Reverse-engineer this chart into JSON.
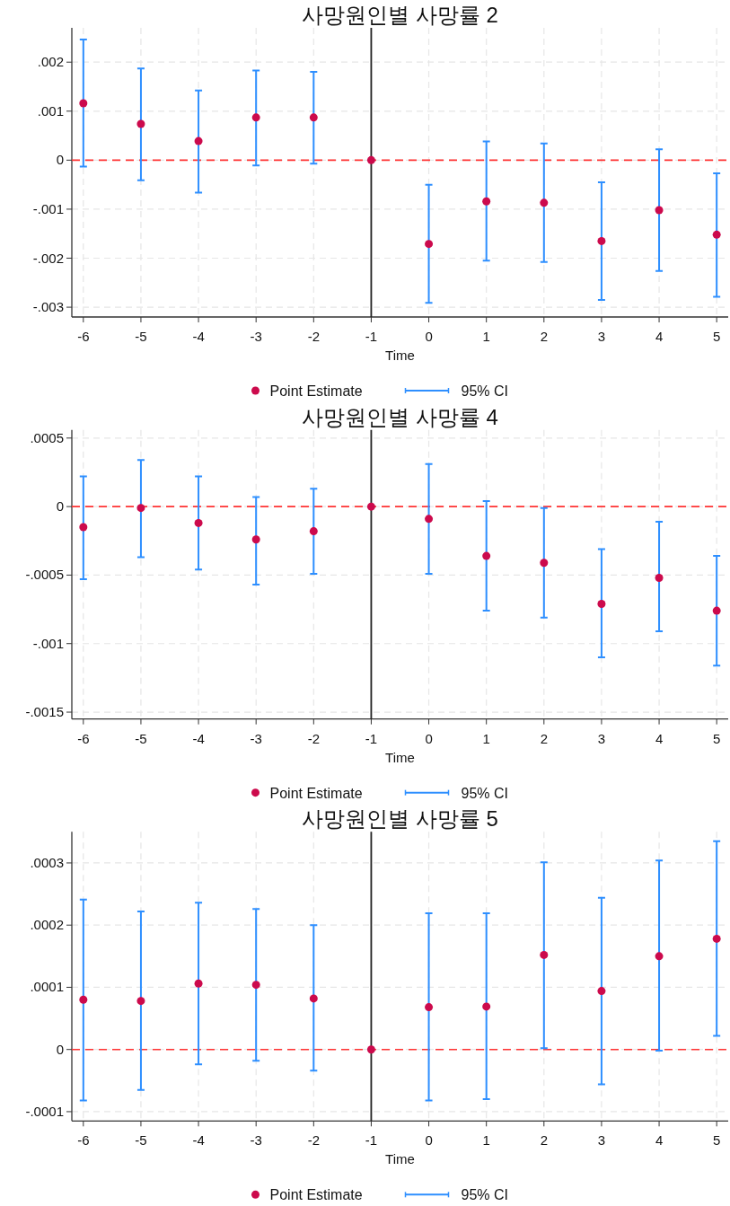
{
  "chart_data": [
    {
      "type": "scatter",
      "title": "사망원인별 사망률 2",
      "xlabel": "Time",
      "x": [
        -6,
        -5,
        -4,
        -3,
        -2,
        -1,
        0,
        1,
        2,
        3,
        4,
        5
      ],
      "xlim": [
        -6.2,
        5.2
      ],
      "xticks": [
        -6,
        -5,
        -4,
        -3,
        -2,
        -1,
        0,
        1,
        2,
        3,
        4,
        5
      ],
      "ylim": [
        -0.0032,
        0.0027
      ],
      "yticks": [
        {
          "value": -0.003,
          "label": "-.003"
        },
        {
          "value": -0.002,
          "label": "-.002"
        },
        {
          "value": -0.001,
          "label": "-.001"
        },
        {
          "value": 0,
          "label": "0"
        },
        {
          "value": 0.001,
          "label": ".001"
        },
        {
          "value": 0.002,
          "label": ".002"
        }
      ],
      "grid": true,
      "legend": "bottom",
      "marker": "circle",
      "ref_lines": [
        {
          "axis": "y",
          "value": 0,
          "color": "#ff3333",
          "line_style": "dashed"
        },
        {
          "axis": "x",
          "value": -1,
          "color": "#222222",
          "line_style": "solid"
        }
      ],
      "series": [
        {
          "name": "Point Estimate",
          "color": "#cc0a4c",
          "values": [
            0.00116,
            0.00074,
            0.00039,
            0.00087,
            0.00087,
            0,
            -0.00171,
            -0.00084,
            -0.00087,
            -0.00165,
            -0.00102,
            -0.00152
          ],
          "errors": [
            [
              -0.00013,
              0.00246
            ],
            [
              -0.00041,
              0.00187
            ],
            [
              -0.00066,
              0.00142
            ],
            [
              -0.00011,
              0.00183
            ],
            [
              -7e-05,
              0.0018
            ],
            null,
            [
              -0.00291,
              -0.0005
            ],
            [
              -0.00205,
              0.00038
            ],
            [
              -0.00208,
              0.00034
            ],
            [
              -0.00285,
              -0.00045
            ],
            [
              -0.00226,
              0.00022
            ],
            [
              -0.00279,
              -0.00027
            ]
          ]
        }
      ],
      "annotations": [
        "95% CI"
      ]
    },
    {
      "type": "scatter",
      "title": "사망원인별 사망률 4",
      "xlabel": "Time",
      "x": [
        -6,
        -5,
        -4,
        -3,
        -2,
        -1,
        0,
        1,
        2,
        3,
        4,
        5
      ],
      "xlim": [
        -6.2,
        5.2
      ],
      "xticks": [
        -6,
        -5,
        -4,
        -3,
        -2,
        -1,
        0,
        1,
        2,
        3,
        4,
        5
      ],
      "ylim": [
        -0.00155,
        0.00056
      ],
      "yticks": [
        {
          "value": -0.0015,
          "label": "-.0015"
        },
        {
          "value": -0.001,
          "label": "-.001"
        },
        {
          "value": -0.0005,
          "label": "-.0005"
        },
        {
          "value": 0,
          "label": "0"
        },
        {
          "value": 0.0005,
          "label": ".0005"
        }
      ],
      "grid": true,
      "legend": "bottom",
      "marker": "circle",
      "ref_lines": [
        {
          "axis": "y",
          "value": 0,
          "color": "#ff3333",
          "line_style": "dashed"
        },
        {
          "axis": "x",
          "value": -1,
          "color": "#222222",
          "line_style": "solid"
        }
      ],
      "series": [
        {
          "name": "Point Estimate",
          "color": "#cc0a4c",
          "values": [
            -0.00015,
            -1e-05,
            -0.00012,
            -0.00024,
            -0.00018,
            0,
            -9e-05,
            -0.00036,
            -0.00041,
            -0.00071,
            -0.00052,
            -0.00076
          ],
          "errors": [
            [
              -0.00053,
              0.00022
            ],
            [
              -0.00037,
              0.00034
            ],
            [
              -0.00046,
              0.00022
            ],
            [
              -0.00057,
              7e-05
            ],
            [
              -0.00049,
              0.00013
            ],
            null,
            [
              -0.00049,
              0.00031
            ],
            [
              -0.00076,
              4e-05
            ],
            [
              -0.00081,
              -1e-05
            ],
            [
              -0.0011,
              -0.00031
            ],
            [
              -0.00091,
              -0.00011
            ],
            [
              -0.00116,
              -0.00036
            ]
          ]
        }
      ],
      "annotations": [
        "95% CI"
      ]
    },
    {
      "type": "scatter",
      "title": "사망원인별 사망률 5",
      "xlabel": "Time",
      "x": [
        -6,
        -5,
        -4,
        -3,
        -2,
        -1,
        0,
        1,
        2,
        3,
        4,
        5
      ],
      "xlim": [
        -6.2,
        5.2
      ],
      "xticks": [
        -6,
        -5,
        -4,
        -3,
        -2,
        -1,
        0,
        1,
        2,
        3,
        4,
        5
      ],
      "ylim": [
        -0.000115,
        0.00035
      ],
      "yticks": [
        {
          "value": -0.0001,
          "label": "-.0001"
        },
        {
          "value": 0,
          "label": "0"
        },
        {
          "value": 0.0001,
          "label": ".0001"
        },
        {
          "value": 0.0002,
          "label": ".0002"
        },
        {
          "value": 0.0003,
          "label": ".0003"
        }
      ],
      "grid": true,
      "legend": "bottom",
      "marker": "circle",
      "ref_lines": [
        {
          "axis": "y",
          "value": 0,
          "color": "#ff3333",
          "line_style": "dashed"
        },
        {
          "axis": "x",
          "value": -1,
          "color": "#222222",
          "line_style": "solid"
        }
      ],
      "series": [
        {
          "name": "Point Estimate",
          "color": "#cc0a4c",
          "values": [
            8e-05,
            7.8e-05,
            0.000106,
            0.000104,
            8.2e-05,
            0,
            6.8e-05,
            6.9e-05,
            0.000152,
            9.4e-05,
            0.00015,
            0.000178
          ],
          "errors": [
            [
              -8.2e-05,
              0.000241
            ],
            [
              -6.5e-05,
              0.000222
            ],
            [
              -2.4e-05,
              0.000236
            ],
            [
              -1.8e-05,
              0.000226
            ],
            [
              -3.4e-05,
              0.0002
            ],
            null,
            [
              -8.2e-05,
              0.000219
            ],
            [
              -8e-05,
              0.000219
            ],
            [
              2e-06,
              0.000301
            ],
            [
              -5.6e-05,
              0.000244
            ],
            [
              -2e-06,
              0.000304
            ],
            [
              2.2e-05,
              0.000335
            ]
          ]
        }
      ],
      "annotations": [
        "95% CI"
      ]
    }
  ]
}
